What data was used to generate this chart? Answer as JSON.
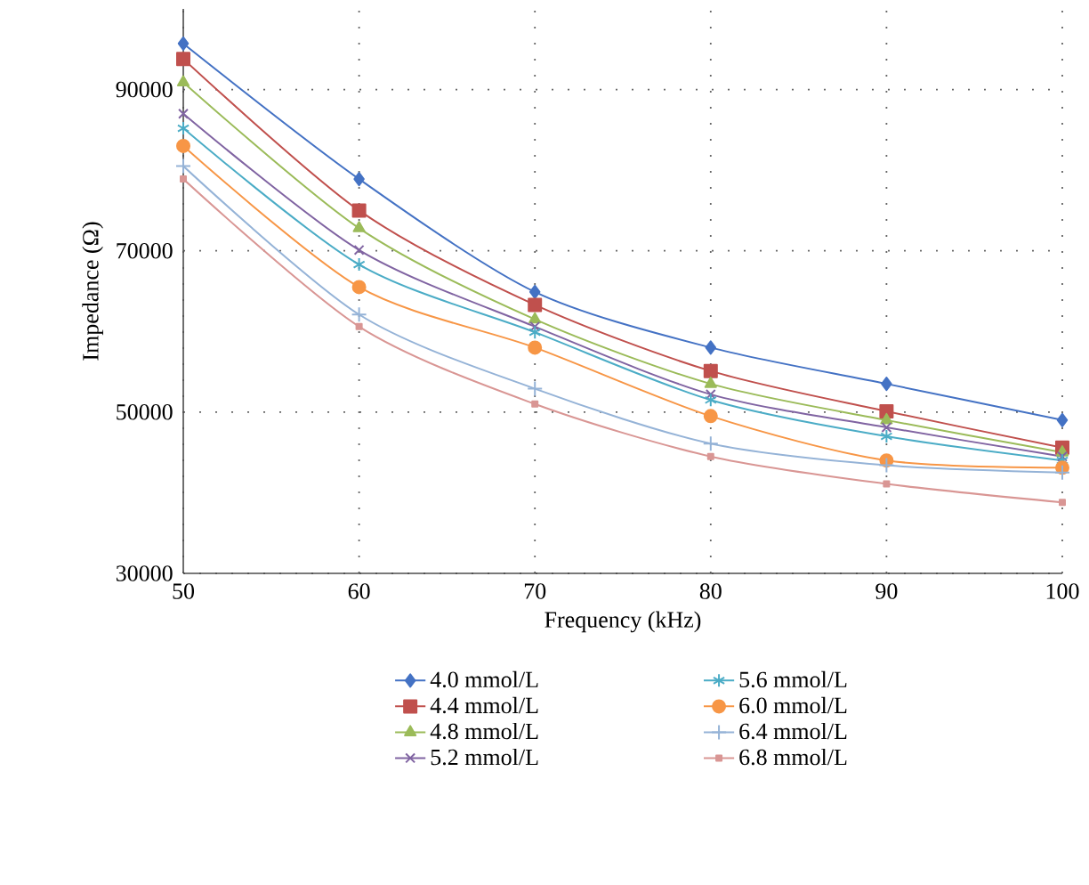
{
  "chart_data": {
    "type": "line",
    "xlabel": "Frequency (kHz)",
    "ylabel": "Impedance (Ω)",
    "x": [
      50,
      60,
      70,
      80,
      90,
      100
    ],
    "xlim": [
      50,
      100
    ],
    "xticks": [
      50,
      60,
      70,
      80,
      90,
      100
    ],
    "ylim": [
      30000,
      100000
    ],
    "yticks": [
      30000,
      50000,
      70000,
      90000
    ],
    "grid": true,
    "legend": "bottom",
    "series": [
      {
        "name": "4.0 mmol/L",
        "color": "#4472c4",
        "marker": "diamond",
        "values": [
          95700,
          78900,
          64900,
          58000,
          53500,
          49000
        ]
      },
      {
        "name": "4.4 mmol/L",
        "color": "#c0504d",
        "marker": "square",
        "values": [
          93800,
          75000,
          63300,
          55100,
          50100,
          45600
        ]
      },
      {
        "name": "4.8 mmol/L",
        "color": "#9bbb59",
        "marker": "triangle",
        "values": [
          90900,
          72800,
          61500,
          53500,
          49000,
          45000
        ]
      },
      {
        "name": "5.2 mmol/L",
        "color": "#8064a2",
        "marker": "cross",
        "values": [
          87000,
          70100,
          60600,
          52200,
          48100,
          44500
        ]
      },
      {
        "name": "5.6 mmol/L",
        "color": "#4bacc6",
        "marker": "cross",
        "values": [
          85200,
          68300,
          59900,
          51500,
          47000,
          44000
        ]
      },
      {
        "name": "6.0 mmol/L",
        "color": "#f79646",
        "marker": "circle",
        "values": [
          83000,
          65500,
          58000,
          49500,
          44000,
          43100
        ]
      },
      {
        "name": "6.4 mmol/L",
        "color": "#95b3d7",
        "marker": "plus",
        "values": [
          80500,
          62100,
          52900,
          46100,
          43400,
          42500
        ]
      },
      {
        "name": "6.8 mmol/L",
        "color": "#d99694",
        "marker": "square",
        "values": [
          78900,
          60600,
          51000,
          44500,
          41100,
          38800
        ]
      }
    ]
  }
}
